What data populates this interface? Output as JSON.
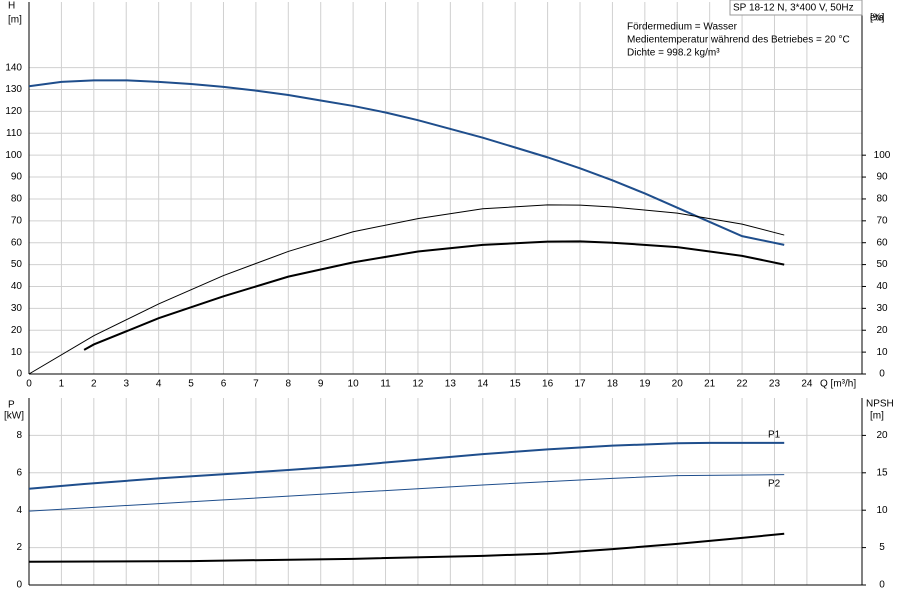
{
  "chart_data": [
    {
      "type": "line",
      "box_title": "SP 18-12 N, 3*400 V, 50Hz",
      "annotations": [
        "Fördermedium = Wasser",
        "Medientemperatur während des Betriebes = 20 °C",
        "Dichte = 998.2 kg/m³"
      ],
      "y_label": "H",
      "y_unit": "[m]",
      "y2_label": "eta",
      "y2_unit": "[%]",
      "x_label": "Q [m³/h]",
      "xlim": [
        0,
        25.7
      ],
      "xticks": [
        0,
        1,
        2,
        3,
        4,
        5,
        6,
        7,
        8,
        9,
        10,
        11,
        12,
        13,
        14,
        15,
        16,
        17,
        18,
        19,
        20,
        21,
        22,
        23,
        24
      ],
      "ylim": [
        0,
        170
      ],
      "yticks": [
        0,
        10,
        20,
        30,
        40,
        50,
        60,
        70,
        80,
        90,
        100,
        110,
        120,
        130,
        140
      ],
      "y2lim": [
        0,
        170
      ],
      "y2ticks": [
        0,
        10,
        20,
        30,
        40,
        50,
        60,
        70,
        80,
        90,
        100
      ],
      "grid": true,
      "series": [
        {
          "color": "#1f4e8c",
          "width": 2,
          "x": [
            0,
            1,
            2,
            3,
            4,
            5,
            6,
            7,
            8,
            9,
            10,
            11,
            12,
            13,
            14,
            15,
            16,
            17,
            18,
            19,
            20,
            21,
            22,
            23.3
          ],
          "values": [
            131.5,
            133.5,
            134.2,
            134.2,
            133.5,
            132.5,
            131.2,
            129.5,
            127.5,
            125,
            122.5,
            119.5,
            116,
            112,
            108,
            103.5,
            99,
            94,
            88.5,
            82.5,
            76,
            69.5,
            63,
            59
          ]
        },
        {
          "color": "#000000",
          "width": 1,
          "axis": "y2",
          "x": [
            0,
            2,
            4,
            6,
            8,
            10,
            12,
            14,
            16,
            17,
            18,
            20,
            22,
            23.3
          ],
          "values": [
            0,
            17.5,
            32,
            45,
            56,
            65,
            71,
            75.5,
            77.3,
            77.2,
            76.3,
            73.5,
            68.5,
            63.5
          ]
        },
        {
          "color": "#000000",
          "width": 2,
          "axis": "y2",
          "x": [
            1.7,
            2,
            4,
            6,
            8,
            10,
            12,
            14,
            16,
            17,
            18,
            20,
            22,
            23.3
          ],
          "values": [
            11,
            13.5,
            25.5,
            35.5,
            44.5,
            51,
            56,
            59,
            60.5,
            60.6,
            60,
            58,
            54,
            50
          ]
        }
      ]
    },
    {
      "type": "line",
      "y_label": "P",
      "y_unit": "[kW]",
      "y2_label": "NPSH",
      "y2_unit": "[m]",
      "xlim": [
        0,
        25.7
      ],
      "xticks": [
        0,
        1,
        2,
        3,
        4,
        5,
        6,
        7,
        8,
        9,
        10,
        11,
        12,
        13,
        14,
        15,
        16,
        17,
        18,
        19,
        20,
        21,
        22,
        23,
        24
      ],
      "ylim": [
        0,
        10
      ],
      "yticks": [
        0,
        2,
        4,
        6,
        8
      ],
      "y2lim": [
        0,
        25
      ],
      "y2ticks": [
        0,
        5,
        10,
        15,
        20
      ],
      "grid": true,
      "series": [
        {
          "name": "P1",
          "color": "#1f4e8c",
          "width": 2,
          "x": [
            0,
            1.7,
            4,
            6,
            8,
            10,
            12,
            14,
            16,
            18,
            20,
            21,
            23.3
          ],
          "values": [
            5.15,
            5.4,
            5.7,
            5.92,
            6.15,
            6.4,
            6.7,
            7.0,
            7.25,
            7.45,
            7.58,
            7.6,
            7.6
          ]
        },
        {
          "name": "P2",
          "color": "#1f4e8c",
          "width": 1,
          "x": [
            0,
            2,
            6,
            10,
            14,
            18,
            20,
            23.3
          ],
          "values": [
            3.95,
            4.15,
            4.55,
            4.95,
            5.35,
            5.7,
            5.85,
            5.9
          ]
        },
        {
          "color": "#000000",
          "width": 2,
          "axis": "y2",
          "x": [
            0,
            5,
            10,
            14,
            16,
            18,
            20,
            22,
            23.3
          ],
          "values": [
            3.1,
            3.2,
            3.5,
            3.9,
            4.2,
            4.8,
            5.5,
            6.3,
            6.85
          ]
        }
      ]
    }
  ]
}
